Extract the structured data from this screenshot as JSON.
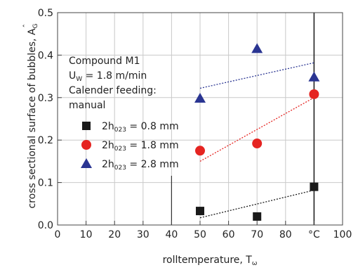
{
  "chart_data": {
    "type": "scatter",
    "xlabel": "rolltemperature, T",
    "xlabel_sub": "ω",
    "ylabel": "cross sectional surface of bubbles, A",
    "ylabel_sub": "G",
    "ylabel_accent": "ˆ",
    "xlim": [
      0,
      100
    ],
    "ylim": [
      0,
      0.5
    ],
    "x_ticks": [
      "0",
      "10",
      "20",
      "30",
      "40",
      "50",
      "60",
      "70",
      "80",
      "°C",
      "100"
    ],
    "y_ticks": [
      "0.0",
      "0.1",
      "0.2",
      "0.3",
      "0.4",
      "0.5"
    ],
    "grid": true,
    "annotation": {
      "line1": "Compound M1",
      "line2_main": "U",
      "line2_sub": "W",
      "line2_rest": " = 1.8 m/min",
      "line3": "Calender feeding:",
      "line4": "manual"
    },
    "legend_placement": "left-middle",
    "series": [
      {
        "name_main": "2h",
        "name_sub": "023",
        "name_rest": " = 0.8 mm",
        "marker": "square",
        "color": "#1a1a1a",
        "x": [
          50,
          70,
          90
        ],
        "y": [
          0.033,
          0.02,
          0.09
        ],
        "trend": [
          [
            50,
            0.017
          ],
          [
            90,
            0.082
          ]
        ]
      },
      {
        "name_main": "2h",
        "name_sub": "023",
        "name_rest": " = 1.8 mm",
        "marker": "circle",
        "color": "#e52421",
        "x": [
          50,
          70,
          90
        ],
        "y": [
          0.175,
          0.192,
          0.308
        ],
        "trend": [
          [
            50,
            0.15
          ],
          [
            90,
            0.3
          ]
        ]
      },
      {
        "name_main": "2h",
        "name_sub": "023",
        "name_rest": " = 2.8 mm",
        "marker": "triangle",
        "color": "#2a3592",
        "x": [
          50,
          70,
          90
        ],
        "y": [
          0.298,
          0.415,
          0.348
        ],
        "trend": [
          [
            50,
            0.322
          ],
          [
            90,
            0.382
          ]
        ]
      }
    ]
  }
}
